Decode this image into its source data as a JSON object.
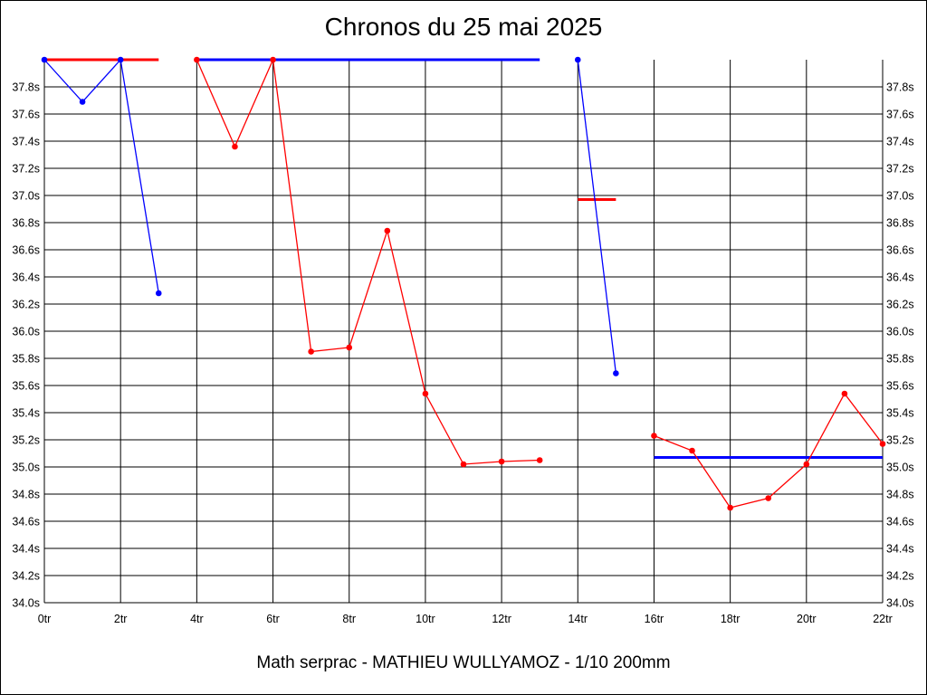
{
  "chart_data": {
    "type": "line",
    "title": "Chronos du 25 mai 2025",
    "footer": "Math serprac - MATHIEU WULLYAMOZ - 1/10 200mm",
    "xlim": [
      0,
      22
    ],
    "ylim": [
      34.0,
      38.0
    ],
    "grid": true,
    "x_ticks": [
      0,
      2,
      4,
      6,
      8,
      10,
      12,
      14,
      16,
      18,
      20,
      22
    ],
    "x_tick_labels": [
      "0tr",
      "2tr",
      "4tr",
      "6tr",
      "8tr",
      "10tr",
      "12tr",
      "14tr",
      "16tr",
      "18tr",
      "20tr",
      "22tr"
    ],
    "y_ticks": [
      34.0,
      34.2,
      34.4,
      34.6,
      34.8,
      35.0,
      35.2,
      35.4,
      35.6,
      35.8,
      36.0,
      36.2,
      36.4,
      36.6,
      36.8,
      37.0,
      37.2,
      37.4,
      37.6,
      37.8
    ],
    "y_tick_labels": [
      "34.0s",
      "34.2s",
      "34.4s",
      "34.6s",
      "34.8s",
      "35.0s",
      "35.2s",
      "35.4s",
      "35.6s",
      "35.8s",
      "36.0s",
      "36.2s",
      "36.4s",
      "36.6s",
      "36.8s",
      "37.0s",
      "37.2s",
      "37.4s",
      "37.6s",
      "37.8s"
    ],
    "series": [
      {
        "color": "#0000ff",
        "points": [
          [
            0,
            38.0
          ],
          [
            1,
            37.69
          ],
          [
            2,
            38.0
          ],
          [
            3,
            36.28
          ]
        ]
      },
      {
        "color": "#ff0000",
        "points": [
          [
            4,
            38.0
          ],
          [
            5,
            37.36
          ],
          [
            6,
            38.0
          ],
          [
            7,
            35.85
          ],
          [
            8,
            35.88
          ],
          [
            9,
            36.74
          ],
          [
            10,
            35.54
          ],
          [
            11,
            35.02
          ],
          [
            12,
            35.04
          ],
          [
            13,
            35.05
          ]
        ]
      },
      {
        "color": "#0000ff",
        "points": [
          [
            14,
            38.0
          ],
          [
            15,
            35.69
          ]
        ]
      },
      {
        "color": "#ff0000",
        "points": [
          [
            16,
            35.23
          ],
          [
            17,
            35.12
          ],
          [
            18,
            34.7
          ],
          [
            19,
            34.77
          ],
          [
            20,
            35.02
          ],
          [
            21,
            35.54
          ],
          [
            22,
            35.17
          ]
        ]
      }
    ],
    "reference_lines": [
      {
        "color": "#ff0000",
        "x": [
          0,
          3
        ],
        "y": 38.0
      },
      {
        "color": "#0000ff",
        "x": [
          4,
          13
        ],
        "y": 38.0
      },
      {
        "color": "#ff0000",
        "x": [
          14,
          15
        ],
        "y": 36.97
      },
      {
        "color": "#0000ff",
        "x": [
          16,
          22
        ],
        "y": 35.07
      }
    ]
  }
}
